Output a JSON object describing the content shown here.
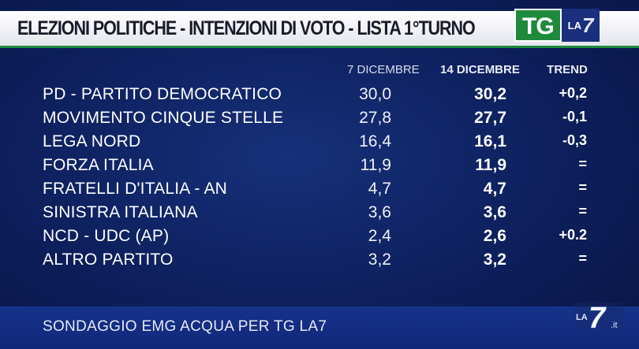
{
  "title": "ELEZIONI POLITICHE - INTENZIONI DI VOTO - LISTA 1°TURNO",
  "logo": {
    "tg": "TG",
    "la": "LA",
    "seven": "7"
  },
  "columns": {
    "date1": "7 DICEMBRE",
    "date2": "14 DICEMBRE",
    "trend": "TREND"
  },
  "rows": [
    {
      "party": "PD - PARTITO DEMOCRATICO",
      "prev": "30,0",
      "curr": "30,2",
      "trend": "+0,2"
    },
    {
      "party": "MOVIMENTO CINQUE STELLE",
      "prev": "27,8",
      "curr": "27,7",
      "trend": "-0,1"
    },
    {
      "party": "LEGA NORD",
      "prev": "16,4",
      "curr": "16,1",
      "trend": "-0,3"
    },
    {
      "party": "FORZA ITALIA",
      "prev": "11,9",
      "curr": "11,9",
      "trend": "="
    },
    {
      "party": "FRATELLI D'ITALIA - AN",
      "prev": "4,7",
      "curr": "4,7",
      "trend": "="
    },
    {
      "party": "SINISTRA ITALIANA",
      "prev": "3,6",
      "curr": "3,6",
      "trend": "="
    },
    {
      "party": "NCD - UDC (AP)",
      "prev": "2,4",
      "curr": "2,6",
      "trend": "+0.2"
    },
    {
      "party": "ALTRO PARTITO",
      "prev": "3,2",
      "curr": "3,2",
      "trend": "="
    }
  ],
  "source": "SONDAGGIO EMG ACQUA PER TG LA7",
  "corner_logo": {
    "la": "LA",
    "seven": "7",
    "suffix": ".it"
  },
  "colors": {
    "background": "#0d1f5c",
    "accent_green": "#1f8a3c",
    "text": "#ffffff"
  }
}
